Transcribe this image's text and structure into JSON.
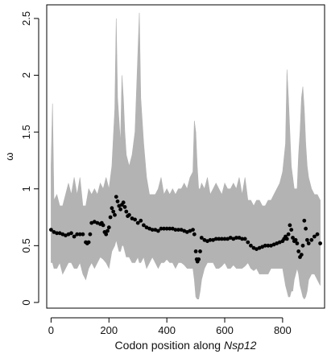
{
  "chart_data": {
    "type": "scatter",
    "title": "",
    "xlabel_prefix": "Codon position along ",
    "xlabel_italic": "Nsp12",
    "ylabel": "ω",
    "xlim": [
      -15,
      945
    ],
    "ylim": [
      -0.05,
      2.62
    ],
    "xticks": [
      0,
      200,
      400,
      600,
      800
    ],
    "yticks": [
      0,
      0.5,
      1,
      1.5,
      2,
      2.5
    ],
    "ytick_labels": [
      "0",
      "0.5",
      "1",
      "1.5",
      "2",
      "2.5"
    ],
    "grid": false,
    "legend": "none",
    "colors": {
      "band": "#b3b3b3",
      "points": "#000000"
    },
    "series": [
      {
        "role": "credible-interval-band",
        "x": [
          0,
          5,
          10,
          20,
          30,
          40,
          50,
          60,
          70,
          80,
          90,
          100,
          110,
          120,
          130,
          140,
          150,
          160,
          170,
          180,
          190,
          200,
          210,
          220,
          225,
          230,
          235,
          240,
          245,
          250,
          255,
          260,
          270,
          280,
          290,
          300,
          305,
          310,
          320,
          330,
          340,
          350,
          360,
          370,
          380,
          390,
          400,
          410,
          420,
          430,
          440,
          450,
          460,
          470,
          480,
          490,
          495,
          500,
          505,
          510,
          515,
          520,
          530,
          540,
          550,
          560,
          570,
          580,
          590,
          600,
          610,
          620,
          630,
          640,
          650,
          660,
          670,
          680,
          690,
          700,
          710,
          720,
          730,
          740,
          750,
          760,
          770,
          780,
          790,
          800,
          810,
          815,
          820,
          825,
          830,
          835,
          840,
          850,
          855,
          860,
          865,
          870,
          875,
          880,
          885,
          890,
          900,
          910,
          920,
          930
        ],
        "lower": [
          0.35,
          0.35,
          0.3,
          0.3,
          0.35,
          0.25,
          0.3,
          0.35,
          0.35,
          0.3,
          0.3,
          0.35,
          0.25,
          0.2,
          0.3,
          0.35,
          0.3,
          0.35,
          0.4,
          0.38,
          0.35,
          0.3,
          0.45,
          0.5,
          0.55,
          0.5,
          0.45,
          0.45,
          0.5,
          0.5,
          0.45,
          0.4,
          0.4,
          0.35,
          0.35,
          0.4,
          0.35,
          0.35,
          0.4,
          0.3,
          0.35,
          0.4,
          0.35,
          0.3,
          0.35,
          0.35,
          0.38,
          0.35,
          0.35,
          0.3,
          0.35,
          0.35,
          0.33,
          0.3,
          0.3,
          0.3,
          0.2,
          0.05,
          0.03,
          0.03,
          0.1,
          0.2,
          0.3,
          0.35,
          0.35,
          0.35,
          0.3,
          0.3,
          0.32,
          0.35,
          0.3,
          0.3,
          0.33,
          0.3,
          0.3,
          0.3,
          0.32,
          0.35,
          0.3,
          0.28,
          0.3,
          0.25,
          0.25,
          0.25,
          0.25,
          0.3,
          0.3,
          0.3,
          0.3,
          0.3,
          0.15,
          0.1,
          0.05,
          0.05,
          0.1,
          0.1,
          0.2,
          0.3,
          0.25,
          0.15,
          0.1,
          0.05,
          0.03,
          0.05,
          0.1,
          0.2,
          0.25,
          0.25,
          0.2,
          0.15
        ],
        "upper": [
          1.2,
          1.75,
          0.9,
          0.95,
          0.85,
          0.85,
          0.95,
          1.05,
          0.95,
          1.1,
          0.95,
          1.1,
          0.85,
          0.85,
          1.0,
          0.95,
          1.0,
          0.95,
          1.05,
          1.0,
          1.1,
          1.0,
          1.2,
          1.7,
          2.5,
          1.8,
          1.6,
          1.4,
          2.0,
          1.8,
          1.5,
          1.3,
          1.2,
          1.3,
          1.5,
          2.2,
          2.55,
          1.8,
          1.4,
          1.1,
          0.95,
          0.95,
          0.95,
          1.0,
          1.1,
          0.95,
          1.0,
          0.95,
          1.0,
          0.95,
          1.0,
          1.0,
          1.05,
          1.0,
          1.1,
          1.15,
          1.6,
          1.5,
          1.2,
          1.0,
          1.0,
          1.05,
          1.0,
          1.1,
          0.95,
          1.0,
          1.05,
          1.0,
          0.95,
          1.05,
          1.0,
          1.0,
          1.05,
          1.0,
          1.1,
          0.95,
          1.1,
          0.9,
          0.9,
          0.85,
          0.9,
          0.9,
          0.85,
          0.85,
          0.9,
          0.9,
          0.95,
          1.0,
          1.05,
          1.15,
          1.4,
          2.05,
          1.8,
          1.5,
          1.2,
          1.1,
          1.0,
          1.0,
          1.3,
          1.5,
          1.8,
          1.9,
          1.7,
          1.4,
          1.2,
          1.1,
          1.0,
          0.95,
          0.95,
          0.9
        ]
      },
      {
        "role": "posterior-mean-points",
        "x": [
          0,
          10,
          20,
          30,
          40,
          50,
          60,
          70,
          80,
          90,
          100,
          110,
          120,
          125,
          130,
          135,
          140,
          150,
          160,
          170,
          175,
          180,
          185,
          190,
          195,
          200,
          205,
          210,
          215,
          220,
          225,
          230,
          235,
          240,
          245,
          250,
          255,
          260,
          265,
          270,
          280,
          290,
          300,
          310,
          320,
          330,
          340,
          350,
          360,
          370,
          380,
          390,
          400,
          410,
          420,
          430,
          440,
          450,
          460,
          470,
          480,
          490,
          495,
          500,
          503,
          506,
          510,
          515,
          520,
          530,
          540,
          550,
          560,
          570,
          580,
          590,
          600,
          610,
          620,
          630,
          640,
          650,
          660,
          670,
          680,
          690,
          700,
          710,
          720,
          730,
          740,
          750,
          760,
          770,
          780,
          790,
          800,
          805,
          810,
          815,
          820,
          825,
          830,
          835,
          840,
          845,
          850,
          855,
          860,
          865,
          870,
          875,
          880,
          885,
          890,
          900,
          910,
          920,
          930
        ],
        "y": [
          0.64,
          0.62,
          0.61,
          0.61,
          0.6,
          0.59,
          0.6,
          0.61,
          0.58,
          0.6,
          0.6,
          0.6,
          0.53,
          0.52,
          0.53,
          0.6,
          0.7,
          0.71,
          0.7,
          0.69,
          0.7,
          0.68,
          0.62,
          0.6,
          0.63,
          0.66,
          0.75,
          0.83,
          0.8,
          0.77,
          0.93,
          0.89,
          0.85,
          0.82,
          0.86,
          0.88,
          0.84,
          0.8,
          0.76,
          0.77,
          0.74,
          0.73,
          0.7,
          0.72,
          0.68,
          0.66,
          0.65,
          0.64,
          0.64,
          0.63,
          0.65,
          0.65,
          0.65,
          0.65,
          0.65,
          0.64,
          0.64,
          0.64,
          0.63,
          0.62,
          0.63,
          0.64,
          0.6,
          0.45,
          0.38,
          0.36,
          0.38,
          0.45,
          0.57,
          0.55,
          0.54,
          0.55,
          0.55,
          0.56,
          0.56,
          0.56,
          0.56,
          0.56,
          0.57,
          0.56,
          0.57,
          0.57,
          0.56,
          0.56,
          0.53,
          0.5,
          0.48,
          0.47,
          0.48,
          0.49,
          0.5,
          0.5,
          0.5,
          0.51,
          0.52,
          0.53,
          0.54,
          0.56,
          0.58,
          0.56,
          0.6,
          0.68,
          0.64,
          0.57,
          0.54,
          0.55,
          0.52,
          0.45,
          0.4,
          0.42,
          0.5,
          0.72,
          0.65,
          0.55,
          0.52,
          0.55,
          0.58,
          0.6,
          0.52
        ]
      }
    ]
  }
}
